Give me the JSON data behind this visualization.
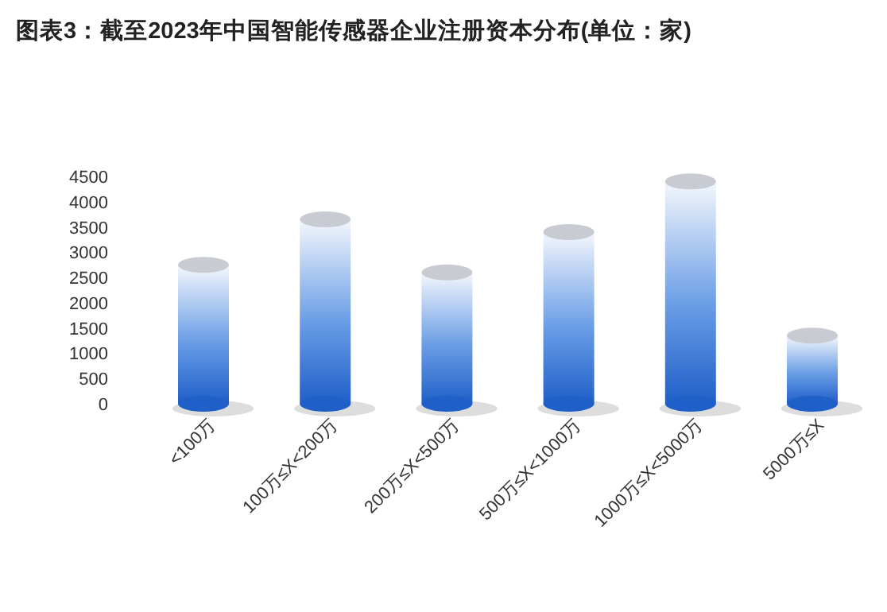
{
  "chart_data": {
    "type": "bar",
    "title": "图表3：截至2023年中国智能传感器企业注册资本分布(单位：家)",
    "categories": [
      "<100万",
      "100万≤X<200万",
      "200万≤X<500万",
      "500万≤X<1000万",
      "1000万≤X<5000万",
      "5000万≤X"
    ],
    "values": [
      2750,
      3650,
      2600,
      3400,
      4400,
      1350
    ],
    "color": "#1f5fc8",
    "ylim": [
      0,
      4500
    ],
    "yticks": [
      0,
      500,
      1000,
      1500,
      2000,
      2500,
      3000,
      3500,
      4000,
      4500
    ],
    "grid": false
  }
}
